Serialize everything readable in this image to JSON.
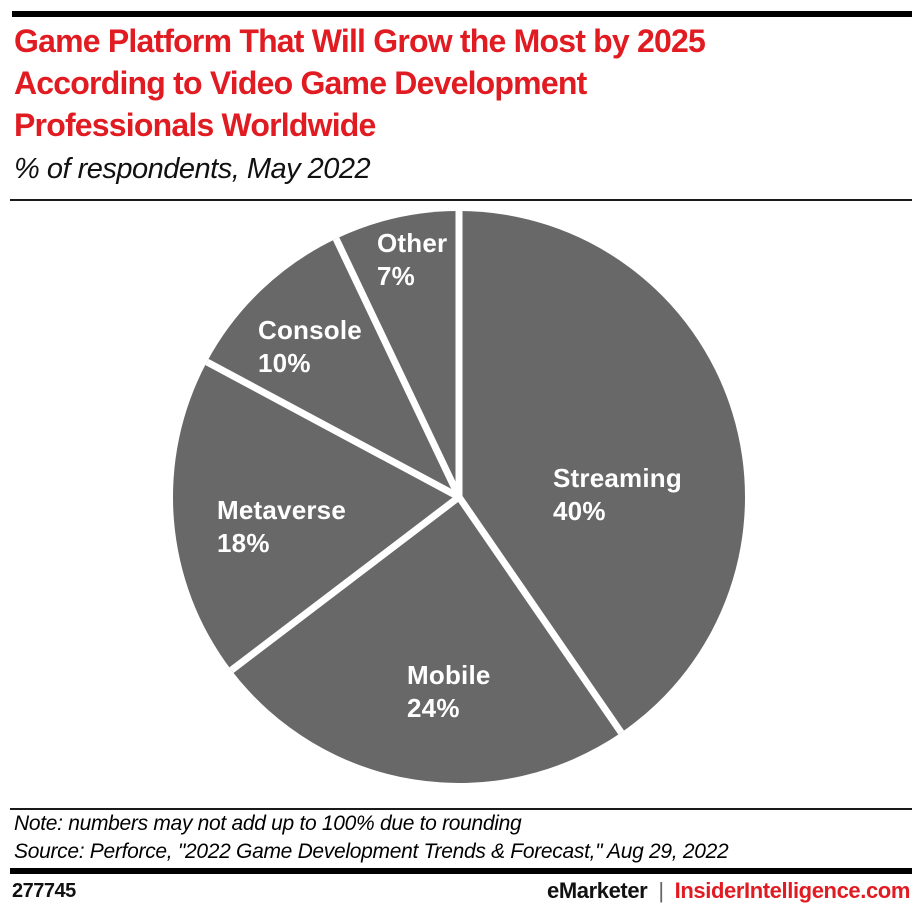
{
  "header": {
    "title_lines": [
      "Game Platform That Will Grow the Most by 2025",
      "According to Video Game Development",
      "Professionals Worldwide"
    ],
    "subtitle": "% of respondents, May 2022"
  },
  "chart_data": {
    "type": "pie",
    "title": "Game Platform That Will Grow the Most by 2025 According to Video Game Development Professionals Worldwide",
    "subtitle": "% of respondents, May 2022",
    "labels": [
      "Streaming",
      "Mobile",
      "Metaverse",
      "Console",
      "Other"
    ],
    "values": [
      40,
      24,
      18,
      10,
      7
    ],
    "value_suffix": "%",
    "start_angle_deg": 0,
    "direction": "clockwise",
    "slice_color": "#686868",
    "separator_color": "#ffffff",
    "label_color": "#ffffff",
    "legend_position": "labels-on-slices"
  },
  "note": "Note: numbers may not add up to 100% due to rounding",
  "source": "Source: Perforce, \"2022 Game Development Trends & Forecast,\" Aug 29, 2022",
  "footer": {
    "chart_id": "277745",
    "brand_left": "eMarketer",
    "separator": "|",
    "brand_right": "InsiderIntelligence.com"
  },
  "colors": {
    "accent_red": "#e11b22",
    "pie_gray": "#686868",
    "bar_black": "#000000"
  }
}
